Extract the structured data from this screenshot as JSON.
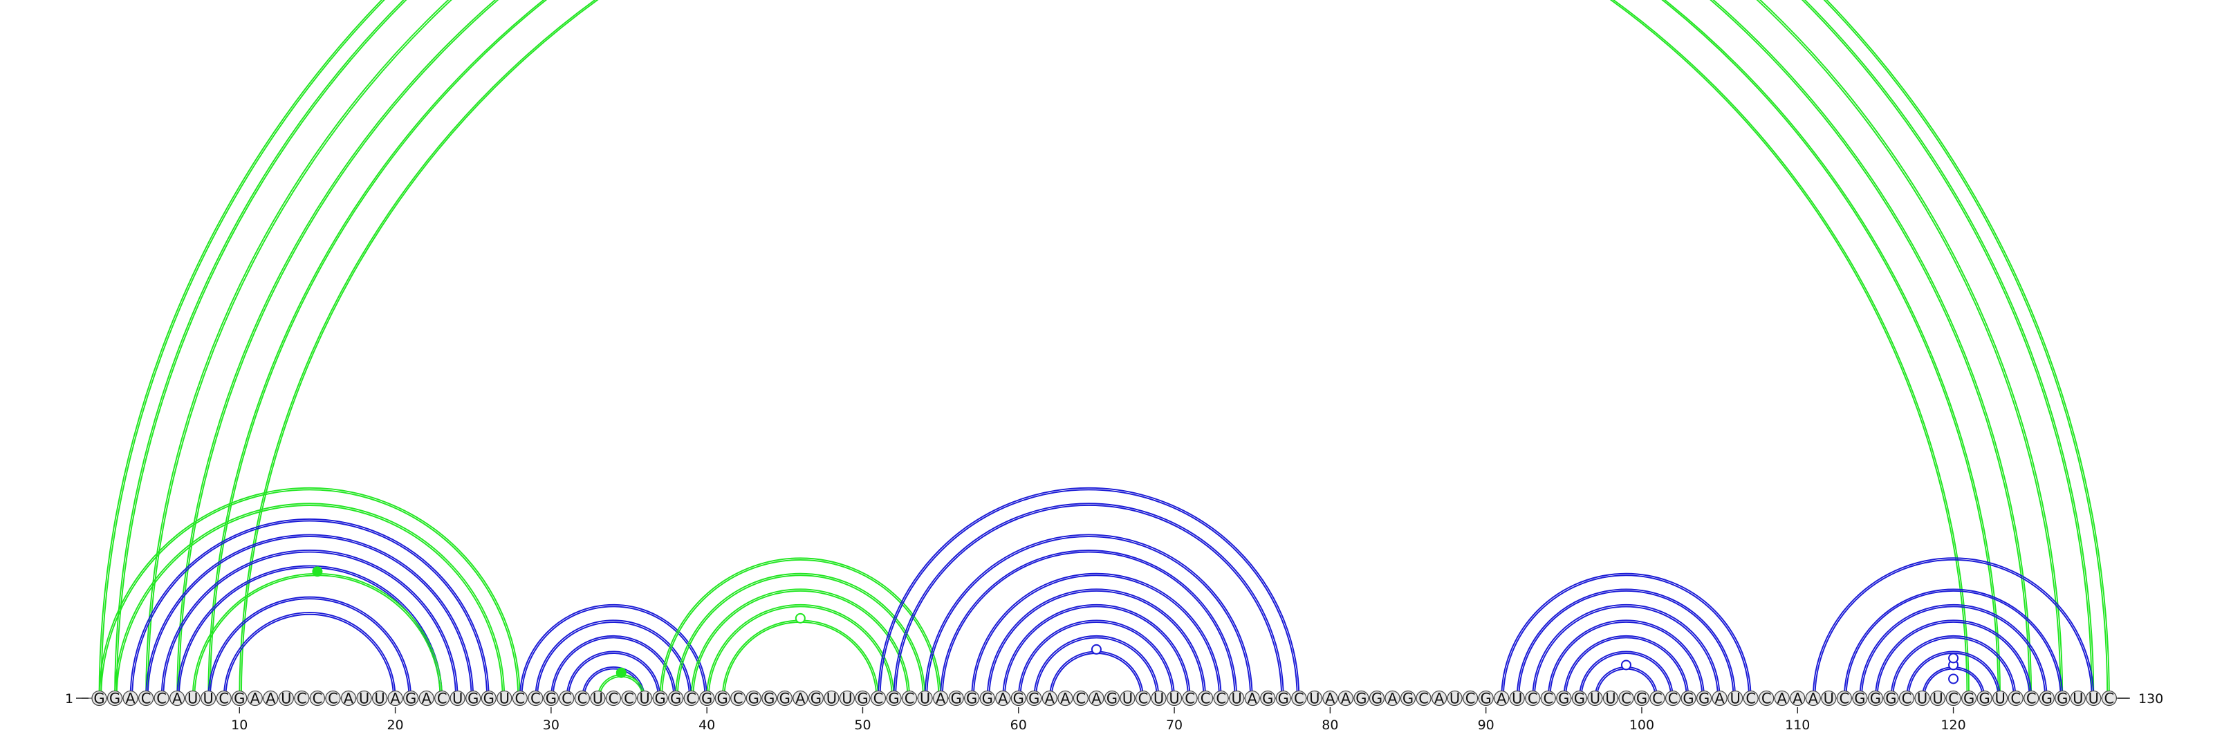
{
  "sequence": "GGACCAUUCGAAUCCCAUUAGACUGGUCCGCCUCCUGGCGGCGGGAGUUGCGCUAGGGAGGAACAGUCUUCCCUAGGCUAAGGAGCAUCGAUCCGGUUCGCCGGAUCCAAAUCGGGCUUCGGUCCGGUUC",
  "start_label": "1",
  "end_label": "130",
  "ticks": [
    10,
    20,
    30,
    40,
    50,
    60,
    70,
    80,
    90,
    100,
    110,
    120
  ],
  "colors": {
    "green": "#22e622",
    "blue": "#1a1ad6",
    "base_fill": "#e6e6e6",
    "base_stroke": "#444444",
    "text": "#111111"
  },
  "arc_groups": [
    {
      "color": "green",
      "upper": true,
      "markers": [
        {
          "pos": 66,
          "fill": false
        }
      ],
      "pairs": [
        [
          1,
          130
        ],
        [
          2,
          129
        ],
        [
          4,
          127
        ],
        [
          6,
          125
        ],
        [
          8,
          123
        ],
        [
          10,
          121
        ]
      ]
    },
    {
      "color": "green",
      "upper": false,
      "markers": [],
      "pairs": [
        [
          1,
          28
        ],
        [
          2,
          27
        ]
      ]
    },
    {
      "color": "blue",
      "upper": false,
      "markers": [],
      "pairs": [
        [
          3,
          26
        ],
        [
          4,
          25
        ],
        [
          5,
          24
        ],
        [
          6,
          23
        ]
      ]
    },
    {
      "color": "green",
      "upper": false,
      "markers": [
        {
          "pos": 15,
          "fill": true
        }
      ],
      "pairs": [
        [
          7,
          23
        ]
      ]
    },
    {
      "color": "blue",
      "upper": false,
      "markers": [],
      "pairs": [
        [
          8,
          21
        ],
        [
          9,
          20
        ]
      ]
    },
    {
      "color": "blue",
      "upper": false,
      "markers": [],
      "pairs": [
        [
          28,
          40
        ],
        [
          29,
          39
        ],
        [
          30,
          38
        ],
        [
          31,
          37
        ],
        [
          32,
          36
        ]
      ]
    },
    {
      "color": "green",
      "upper": false,
      "markers": [
        {
          "pos": 34.5,
          "fill": true
        }
      ],
      "pairs": [
        [
          33,
          36
        ]
      ]
    },
    {
      "color": "green",
      "upper": false,
      "markers": [
        {
          "pos": 46,
          "fill": false
        }
      ],
      "pairs": [
        [
          37,
          55
        ],
        [
          38,
          54
        ],
        [
          39,
          53
        ],
        [
          40,
          52
        ],
        [
          41,
          51
        ]
      ]
    },
    {
      "color": "blue",
      "upper": false,
      "markers": [
        {
          "pos": 65,
          "fill": false
        }
      ],
      "pairs": [
        [
          51,
          78
        ],
        [
          52,
          77
        ],
        [
          54,
          75
        ],
        [
          55,
          74
        ],
        [
          57,
          73
        ],
        [
          58,
          72
        ],
        [
          59,
          71
        ],
        [
          60,
          70
        ],
        [
          61,
          69
        ],
        [
          62,
          68
        ]
      ]
    },
    {
      "color": "blue",
      "upper": false,
      "markers": [
        {
          "pos": 99,
          "fill": false
        }
      ],
      "pairs": [
        [
          91,
          107
        ],
        [
          92,
          106
        ],
        [
          93,
          105
        ],
        [
          94,
          104
        ],
        [
          95,
          103
        ],
        [
          96,
          102
        ],
        [
          97,
          101
        ]
      ]
    },
    {
      "color": "blue",
      "upper": false,
      "markers": [
        {
          "pos": 120,
          "fill": false
        },
        {
          "pos": 120,
          "fill": false,
          "offset": 58
        },
        {
          "pos": 120,
          "fill": false,
          "offset": 28
        }
      ],
      "pairs": [
        [
          111,
          129
        ],
        [
          113,
          127
        ],
        [
          114,
          126
        ],
        [
          115,
          125
        ],
        [
          116,
          124
        ],
        [
          117,
          123
        ],
        [
          118,
          122
        ]
      ]
    }
  ]
}
